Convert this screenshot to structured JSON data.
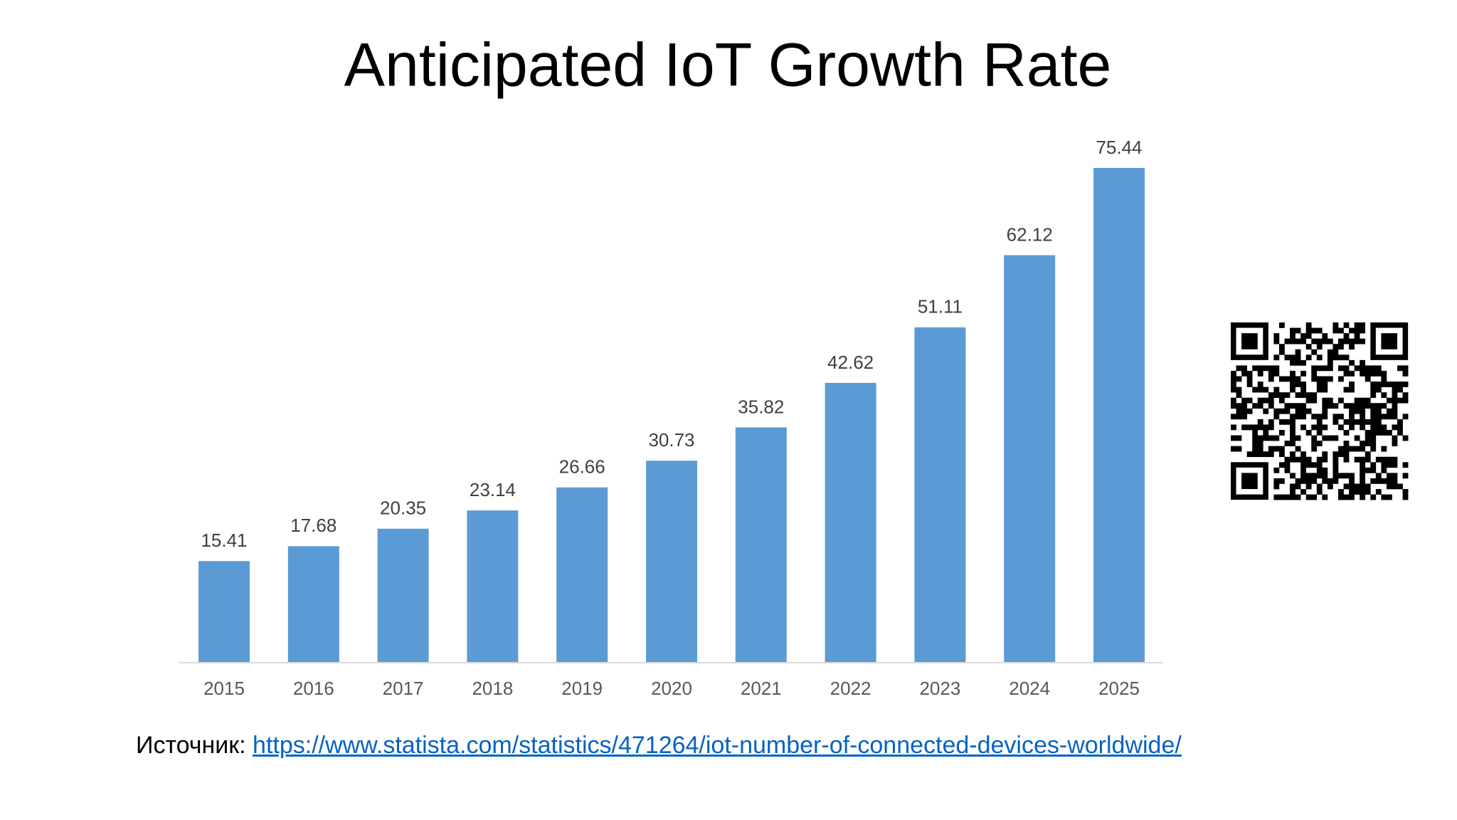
{
  "chart_data": {
    "type": "bar",
    "title": "Anticipated IoT Growth Rate",
    "categories": [
      "2015",
      "2016",
      "2017",
      "2018",
      "2019",
      "2020",
      "2021",
      "2022",
      "2023",
      "2024",
      "2025"
    ],
    "values": [
      15.41,
      17.68,
      20.35,
      23.14,
      26.66,
      30.73,
      35.82,
      42.62,
      51.11,
      62.12,
      75.44
    ],
    "color": "#5b9bd5",
    "ylim": [
      0,
      80
    ],
    "data_labels": true
  },
  "source": {
    "label": "Источник:",
    "url": "https://www.statista.com/statistics/471264/iot-number-of-connected-devices-worldwide/"
  }
}
